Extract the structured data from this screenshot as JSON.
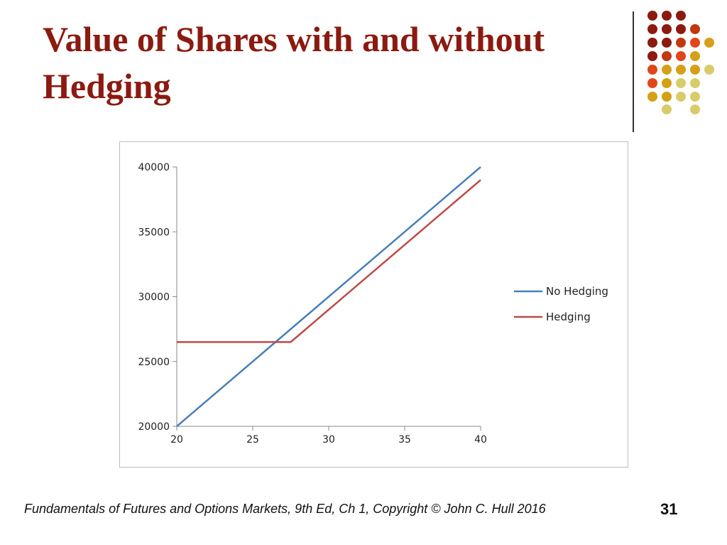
{
  "slide": {
    "title": "Value of Shares with and without Hedging",
    "footer": "Fundamentals of Futures and Options Markets, 9th Ed, Ch 1, Copyright © John C. Hull 2016",
    "page_number": "31"
  },
  "decor": {
    "dot_colors": [
      "#8b1a10",
      "#c0390f",
      "#e0461a",
      "#d4a017",
      "#d8cc6a"
    ]
  },
  "chart_data": {
    "type": "line",
    "title": "",
    "xlabel": "",
    "ylabel": "",
    "xlim": [
      20,
      40
    ],
    "ylim": [
      20000,
      40000
    ],
    "x_ticks": [
      20,
      25,
      30,
      35,
      40
    ],
    "y_ticks": [
      20000,
      25000,
      30000,
      35000,
      40000
    ],
    "grid": false,
    "legend_position": "right",
    "series": [
      {
        "name": "No Hedging",
        "color": "#4a7ebb",
        "x": [
          20,
          40
        ],
        "y": [
          20000,
          40000
        ]
      },
      {
        "name": "Hedging",
        "color": "#be4b48",
        "x": [
          20,
          27.5,
          40
        ],
        "y": [
          26500,
          26500,
          39000
        ]
      }
    ]
  }
}
